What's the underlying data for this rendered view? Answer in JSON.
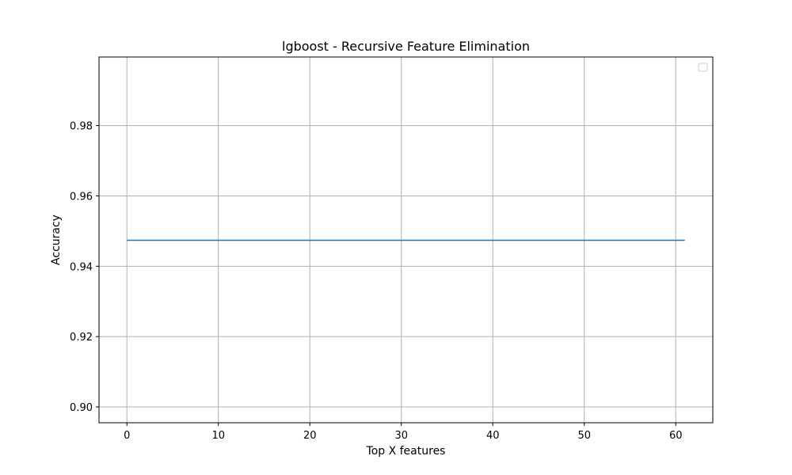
{
  "chart_data": {
    "type": "line",
    "title": "lgboost - Recursive Feature Elimination",
    "xlabel": "Top X features",
    "ylabel": "Accuracy",
    "xlim": [
      -3.05,
      64.05
    ],
    "ylim": [
      0.8955,
      0.9995
    ],
    "x_ticks": [
      0,
      10,
      20,
      30,
      40,
      50,
      60
    ],
    "x_tick_labels": [
      "0",
      "10",
      "20",
      "30",
      "40",
      "50",
      "60"
    ],
    "y_ticks": [
      0.9,
      0.92,
      0.94,
      0.96,
      0.98
    ],
    "y_tick_labels": [
      "0.90",
      "0.92",
      "0.94",
      "0.96",
      "0.98"
    ],
    "grid": true,
    "legend": {
      "placement": "top-right",
      "entries": []
    },
    "series": [
      {
        "color": "#1f77b4",
        "x": [
          0,
          61
        ],
        "y": [
          0.9474,
          0.9474
        ]
      }
    ]
  }
}
